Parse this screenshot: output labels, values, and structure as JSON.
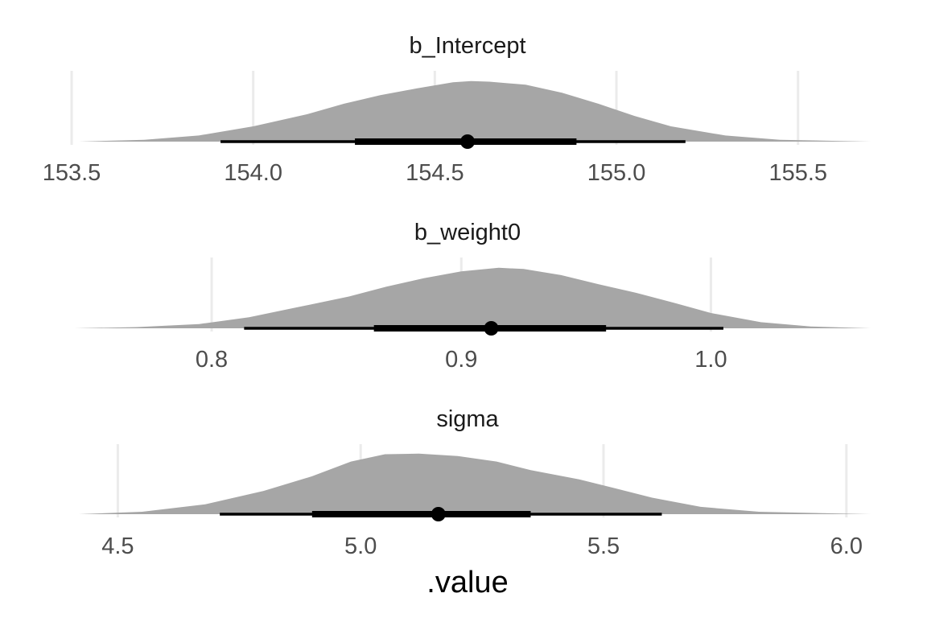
{
  "chart_data": {
    "type": "area",
    "xlabel": ".value",
    "ylabel": "",
    "grid": true,
    "colors": {
      "density": "#a6a6a6",
      "interval": "#000000",
      "point": "#000000",
      "grid": "#ebebeb"
    },
    "panels": [
      {
        "title": "b_Intercept",
        "xlim": [
          153.48,
          155.7
        ],
        "ticks": [
          153.5,
          154.0,
          154.5,
          155.0,
          155.5
        ],
        "tick_labels": [
          "153.5",
          "154.0",
          "154.5",
          "155.0",
          "155.5"
        ],
        "density": {
          "x": [
            153.52,
            153.7,
            153.85,
            154.0,
            154.15,
            154.25,
            154.35,
            154.45,
            154.55,
            154.6,
            154.65,
            154.75,
            154.85,
            154.95,
            155.05,
            155.15,
            155.3,
            155.45,
            155.7
          ],
          "y": [
            0.0,
            0.03,
            0.1,
            0.25,
            0.45,
            0.62,
            0.76,
            0.87,
            0.97,
            0.99,
            0.98,
            0.93,
            0.8,
            0.62,
            0.42,
            0.25,
            0.1,
            0.03,
            0.0
          ]
        },
        "point": 154.59,
        "interval_66": [
          154.28,
          154.89
        ],
        "interval_95": [
          153.91,
          155.19
        ]
      },
      {
        "title": "b_weight0",
        "xlim": [
          0.741,
          1.064
        ],
        "ticks": [
          0.8,
          0.9,
          1.0
        ],
        "tick_labels": [
          "0.8",
          "0.9",
          "1.0"
        ],
        "density": {
          "x": [
            0.745,
            0.77,
            0.795,
            0.815,
            0.835,
            0.855,
            0.87,
            0.885,
            0.9,
            0.915,
            0.925,
            0.94,
            0.955,
            0.97,
            0.985,
            1.0,
            1.02,
            1.04,
            1.064
          ],
          "y": [
            0.0,
            0.02,
            0.07,
            0.18,
            0.35,
            0.52,
            0.68,
            0.82,
            0.93,
            0.99,
            0.97,
            0.87,
            0.72,
            0.58,
            0.42,
            0.25,
            0.1,
            0.03,
            0.0
          ]
        },
        "point": 0.912,
        "interval_66": [
          0.865,
          0.958
        ],
        "interval_95": [
          0.813,
          1.005
        ]
      },
      {
        "title": "sigma",
        "xlim": [
          4.39,
          6.05
        ],
        "ticks": [
          4.5,
          5.0,
          5.5,
          6.0
        ],
        "tick_labels": [
          "4.5",
          "5.0",
          "5.5",
          "6.0"
        ],
        "density": {
          "x": [
            4.42,
            4.55,
            4.68,
            4.8,
            4.9,
            4.98,
            5.05,
            5.12,
            5.2,
            5.28,
            5.35,
            5.45,
            5.52,
            5.6,
            5.7,
            5.82,
            6.05
          ],
          "y": [
            0.0,
            0.04,
            0.16,
            0.38,
            0.62,
            0.86,
            0.98,
            0.99,
            0.95,
            0.86,
            0.72,
            0.57,
            0.43,
            0.27,
            0.12,
            0.04,
            0.0
          ]
        },
        "point": 5.16,
        "interval_66": [
          4.9,
          5.35
        ],
        "interval_95": [
          4.71,
          5.62
        ]
      }
    ]
  }
}
